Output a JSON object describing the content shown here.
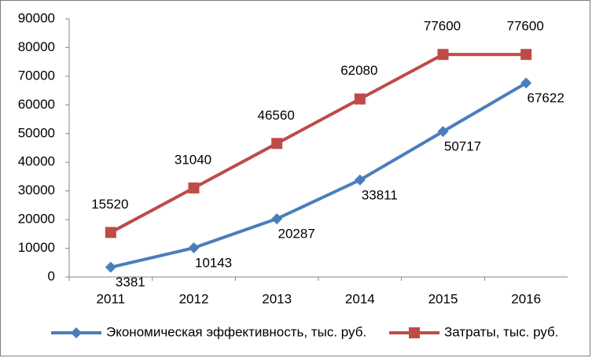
{
  "chart_data": {
    "type": "line",
    "categories": [
      "2011",
      "2012",
      "2013",
      "2014",
      "2015",
      "2016"
    ],
    "series": [
      {
        "name": "Экономическая эффективность, тыс. руб.",
        "color": "#4a7ebb",
        "marker": "diamond",
        "values": [
          3381,
          10143,
          20287,
          33811,
          50717,
          67622
        ]
      },
      {
        "name": "Затраты, тыс. руб.",
        "color": "#be4b48",
        "marker": "square",
        "values": [
          15520,
          31040,
          46560,
          62080,
          77600,
          77600
        ]
      }
    ],
    "ylim": [
      0,
      90000
    ],
    "yticks": [
      0,
      10000,
      20000,
      30000,
      40000,
      50000,
      60000,
      70000,
      80000,
      90000
    ],
    "grid": false,
    "legend": "bottom"
  }
}
